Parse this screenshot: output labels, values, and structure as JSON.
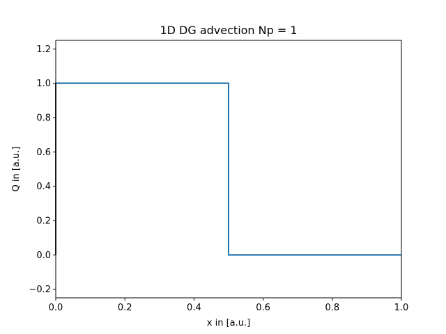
{
  "chart_data": {
    "type": "line",
    "title": "1D DG advection Np = 1",
    "xlabel": "x in [a.u.]",
    "ylabel": "Q in [a.u.]",
    "xlim": [
      0.0,
      1.0
    ],
    "ylim": [
      -0.25,
      1.25
    ],
    "xticks": [
      0.0,
      0.2,
      0.4,
      0.6,
      0.8,
      1.0
    ],
    "xtick_labels": [
      "0.0",
      "0.2",
      "0.4",
      "0.6",
      "0.8",
      "1.0"
    ],
    "yticks": [
      -0.2,
      0.0,
      0.2,
      0.4,
      0.6,
      0.8,
      1.0,
      1.2
    ],
    "ytick_labels": [
      "−0.2",
      "0.0",
      "0.2",
      "0.4",
      "0.6",
      "0.8",
      "1.0",
      "1.2"
    ],
    "grid": false,
    "legend": false,
    "series": [
      {
        "color": "#000000",
        "x": [
          0.0,
          0.0,
          0.5,
          0.5,
          1.0
        ],
        "y": [
          0.0,
          1.0,
          1.0,
          0.0,
          0.0
        ]
      },
      {
        "color": "#1f77b4",
        "x": [
          0.0,
          0.5,
          0.5,
          1.0
        ],
        "y": [
          1.0,
          1.0,
          0.0,
          0.0
        ]
      }
    ]
  }
}
